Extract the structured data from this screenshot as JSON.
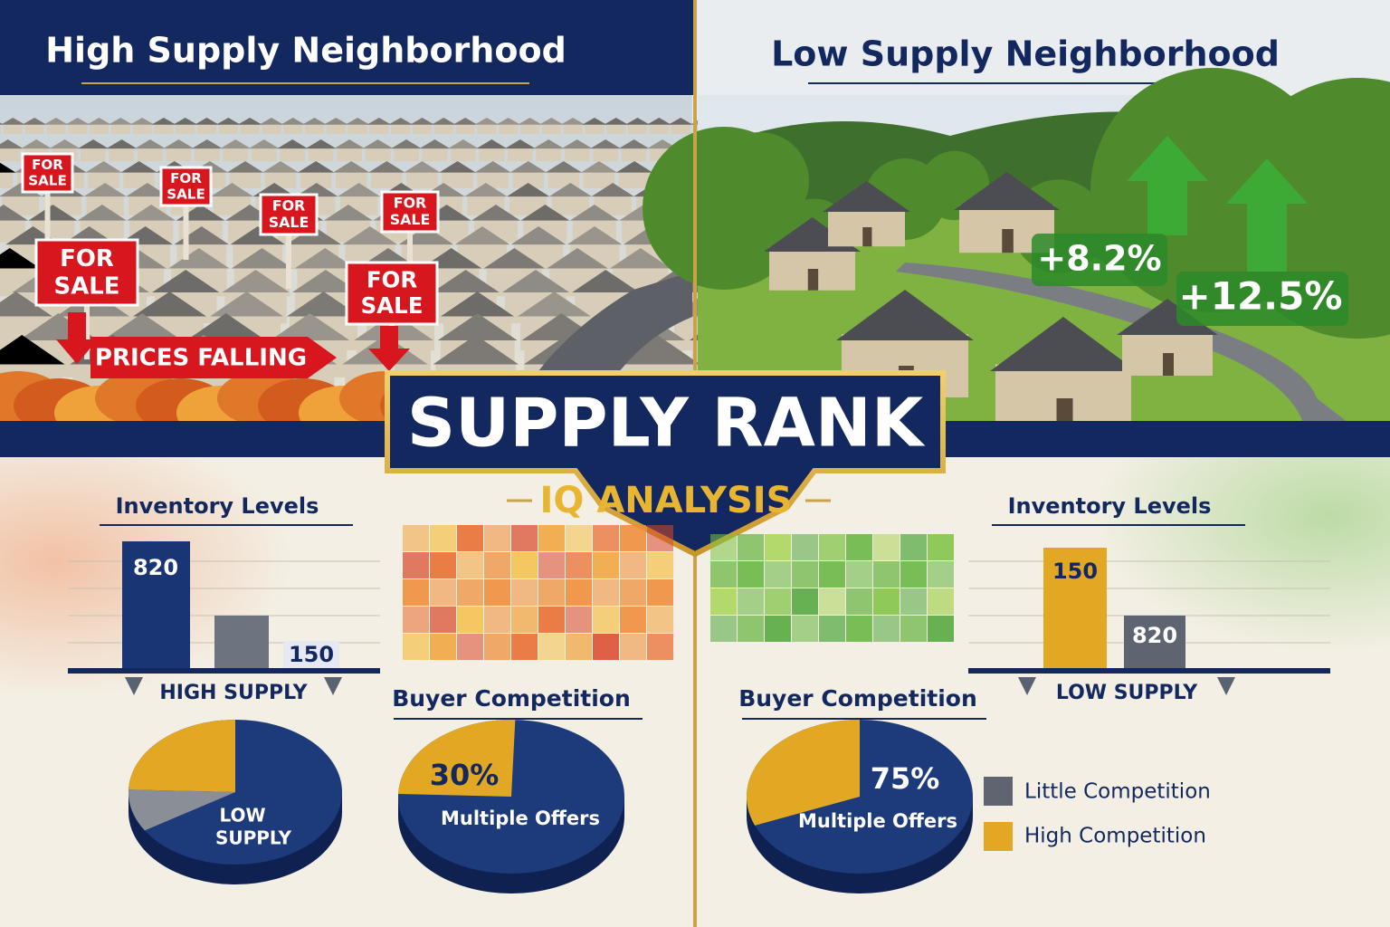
{
  "left": {
    "title": "High Supply Neighborhood",
    "signs": [
      [
        "FOR",
        "SALE"
      ],
      [
        "FOR",
        "SALE"
      ],
      [
        "FOR",
        "SALE"
      ],
      [
        "FOR",
        "SALE"
      ],
      [
        "FOR",
        "SALE"
      ],
      [
        "FOR",
        "SALE"
      ]
    ],
    "banner": "PRICES FALLING",
    "inventory": {
      "title": "Inventory Levels",
      "labels": [
        "820",
        "150"
      ],
      "caption": "HIGH SUPPLY"
    },
    "pie_label": [
      "LOW",
      "SUPPLY"
    ],
    "competition": {
      "title": "Buyer Competition",
      "percent": "30%",
      "label": "Multiple Offers"
    }
  },
  "center": {
    "title": "SUPPLY RANK",
    "subtitle": "IQ ANALYSIS"
  },
  "right": {
    "title": "Low Supply Neighborhood",
    "growth": [
      "+8.2%",
      "+12.5%"
    ],
    "inventory": {
      "title": "Inventory Levels",
      "labels": [
        "150",
        "820"
      ],
      "caption": "LOW SUPPLY"
    },
    "competition": {
      "title": "Buyer Competition",
      "percent": "75%",
      "label": "Multiple Offers"
    },
    "legend": [
      "Little Competition",
      "High Competition"
    ]
  }
}
